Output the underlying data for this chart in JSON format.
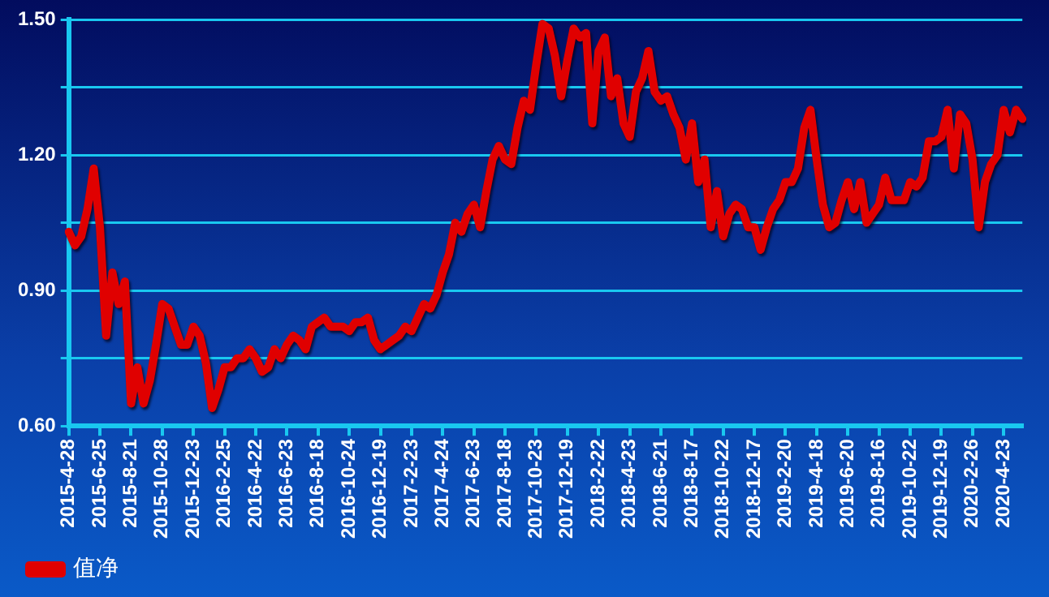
{
  "chart_data": {
    "type": "line",
    "categories": [
      "2015-4-28",
      null,
      null,
      null,
      null,
      "2015-6-25",
      null,
      null,
      null,
      null,
      "2015-8-21",
      null,
      null,
      null,
      null,
      "2015-10-28",
      null,
      null,
      null,
      null,
      "2015-12-23",
      null,
      null,
      null,
      null,
      "2016-2-25",
      null,
      null,
      null,
      null,
      "2016-4-22",
      null,
      null,
      null,
      null,
      "2016-6-23",
      null,
      null,
      null,
      null,
      "2016-8-18",
      null,
      null,
      null,
      null,
      "2016-10-24",
      null,
      null,
      null,
      null,
      "2016-12-19",
      null,
      null,
      null,
      null,
      "2017-2-23",
      null,
      null,
      null,
      null,
      "2017-4-24",
      null,
      null,
      null,
      null,
      "2017-6-23",
      null,
      null,
      null,
      null,
      "2017-8-18",
      null,
      null,
      null,
      null,
      "2017-10-23",
      null,
      null,
      null,
      null,
      "2017-12-19",
      null,
      null,
      null,
      null,
      "2018-2-22",
      null,
      null,
      null,
      null,
      "2018-4-23",
      null,
      null,
      null,
      null,
      "2018-6-21",
      null,
      null,
      null,
      null,
      "2018-8-17",
      null,
      null,
      null,
      null,
      "2018-10-22",
      null,
      null,
      null,
      null,
      "2018-12-17",
      null,
      null,
      null,
      null,
      "2019-2-20",
      null,
      null,
      null,
      null,
      "2019-4-18",
      null,
      null,
      null,
      null,
      "2019-6-20",
      null,
      null,
      null,
      null,
      "2019-8-16",
      null,
      null,
      null,
      null,
      "2019-10-22",
      null,
      null,
      null,
      null,
      "2019-12-19",
      null,
      null,
      null,
      null,
      "2020-2-26",
      null,
      null,
      null,
      null,
      "2020-4-23",
      null,
      null,
      null
    ],
    "series": [
      {
        "name": "值净",
        "color": "#e00000",
        "values": [
          1.03,
          1.0,
          1.02,
          1.08,
          1.17,
          1.04,
          0.8,
          0.94,
          0.87,
          0.92,
          0.65,
          0.73,
          0.65,
          0.7,
          0.78,
          0.87,
          0.86,
          0.82,
          0.78,
          0.78,
          0.82,
          0.8,
          0.74,
          0.64,
          0.68,
          0.73,
          0.73,
          0.75,
          0.75,
          0.77,
          0.75,
          0.72,
          0.73,
          0.77,
          0.75,
          0.78,
          0.8,
          0.79,
          0.77,
          0.82,
          0.83,
          0.84,
          0.82,
          0.82,
          0.82,
          0.81,
          0.83,
          0.83,
          0.84,
          0.79,
          0.77,
          0.78,
          0.79,
          0.8,
          0.82,
          0.81,
          0.84,
          0.87,
          0.86,
          0.89,
          0.94,
          0.98,
          1.05,
          1.03,
          1.07,
          1.09,
          1.04,
          1.12,
          1.19,
          1.22,
          1.19,
          1.18,
          1.26,
          1.32,
          1.3,
          1.4,
          1.49,
          1.48,
          1.42,
          1.33,
          1.41,
          1.48,
          1.46,
          1.47,
          1.27,
          1.43,
          1.46,
          1.33,
          1.37,
          1.27,
          1.24,
          1.34,
          1.37,
          1.43,
          1.34,
          1.32,
          1.33,
          1.29,
          1.26,
          1.19,
          1.27,
          1.14,
          1.19,
          1.04,
          1.12,
          1.02,
          1.07,
          1.09,
          1.08,
          1.04,
          1.04,
          0.99,
          1.04,
          1.08,
          1.1,
          1.14,
          1.14,
          1.17,
          1.26,
          1.3,
          1.19,
          1.09,
          1.04,
          1.05,
          1.1,
          1.14,
          1.08,
          1.14,
          1.05,
          1.07,
          1.09,
          1.15,
          1.1,
          1.1,
          1.1,
          1.14,
          1.13,
          1.15,
          1.23,
          1.23,
          1.24,
          1.3,
          1.17,
          1.29,
          1.27,
          1.19,
          1.04,
          1.14,
          1.18,
          1.2,
          1.3,
          1.25,
          1.3,
          1.28
        ]
      }
    ],
    "ylim": [
      0.6,
      1.5
    ],
    "yticks": [
      {
        "value": 0.6,
        "label": "0.60"
      },
      {
        "value": 0.75,
        "label": null
      },
      {
        "value": 0.9,
        "label": "0.90"
      },
      {
        "value": 1.05,
        "label": null
      },
      {
        "value": 1.2,
        "label": "1.20"
      },
      {
        "value": 1.35,
        "label": null
      },
      {
        "value": 1.5,
        "label": "1.50"
      }
    ],
    "grid": "y",
    "legend": "bottom",
    "marker": "none",
    "line_style": "solid"
  }
}
